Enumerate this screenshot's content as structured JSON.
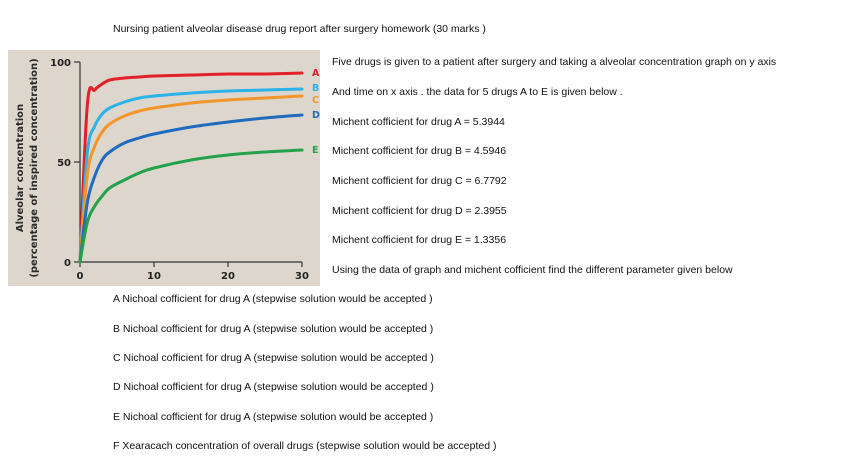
{
  "header": {
    "title": "Nursing patient alveolar disease drug report after surgery homework (30 marks )"
  },
  "intro": {
    "line1": "Five drugs is given to a patient after surgery and taking a alveolar concentration  graph on y axis",
    "line2": "And time on x axis . the data for 5 drugs A to E is given below ."
  },
  "coefficients": [
    "Michent cofficient for drug A = 5.3944",
    "Michent cofficient for drug B = 4.5946",
    "Michent cofficient for drug C = 6.7792",
    "Michent cofficient for drug D = 2.3955",
    "Michent cofficient for drug E = 1.3356"
  ],
  "instruction": "Using the data of graph and michent cofficient find the different parameter given below",
  "questions": [
    "A Nichoal cofficient for drug A (stepwise solution would be accepted )",
    "B Nichoal cofficient for drug A (stepwise solution would be accepted )",
    "C Nichoal cofficient for drug A (stepwise solution would be accepted )",
    "D Nichoal cofficient for drug A (stepwise solution would be accepted )",
    "E Nichoal cofficient for drug A (stepwise solution would be accepted )",
    "F Xearacach concentration of overall drugs (stepwise solution would be accepted )"
  ],
  "chart_data": {
    "type": "line",
    "title": "",
    "ylabel_line1": "Alveolar concentration",
    "ylabel_line2": "(percentage of inspired concentration)",
    "xlabel": "",
    "xlim": [
      0,
      30
    ],
    "ylim": [
      0,
      100
    ],
    "xticks": [
      0,
      10,
      20,
      30
    ],
    "yticks": [
      0,
      50,
      100
    ],
    "x": [
      0,
      1,
      2,
      3,
      4,
      6,
      8,
      10,
      15,
      20,
      25,
      30
    ],
    "series": [
      {
        "name": "A",
        "color": "#e3202a",
        "values": [
          0,
          79,
          86,
          89,
          91,
          92,
          92.5,
          93,
          93.5,
          94,
          94,
          94.5
        ]
      },
      {
        "name": "B",
        "color": "#29b3e6",
        "values": [
          0,
          55,
          68,
          74,
          77,
          80,
          82,
          83,
          84.5,
          85.5,
          86,
          86.5
        ]
      },
      {
        "name": "C",
        "color": "#f2962a",
        "values": [
          0,
          44,
          58,
          65,
          69,
          73,
          75.5,
          77,
          79.5,
          81,
          82,
          83
        ]
      },
      {
        "name": "D",
        "color": "#1f6bbf",
        "values": [
          0,
          30,
          43,
          51,
          55,
          59.5,
          62,
          64,
          67.5,
          70,
          72,
          73.5
        ]
      },
      {
        "name": "E",
        "color": "#22a24a",
        "values": [
          0,
          20,
          28,
          33,
          37,
          41,
          44.5,
          47,
          51,
          53.5,
          55,
          56
        ]
      }
    ]
  }
}
